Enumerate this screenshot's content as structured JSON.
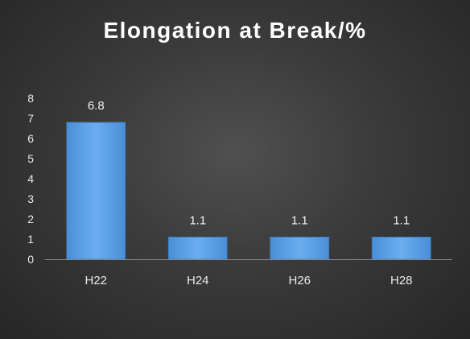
{
  "chart_data": {
    "type": "bar",
    "title": "Elongation at Break/%",
    "xlabel": "",
    "ylabel": "",
    "categories": [
      "H22",
      "H24",
      "H26",
      "H28"
    ],
    "values": [
      6.8,
      1.1,
      1.1,
      1.1
    ],
    "data_labels": [
      "6.8",
      "1.1",
      "1.1",
      "1.1"
    ],
    "yticks": [
      0,
      1,
      2,
      3,
      4,
      5,
      6,
      7,
      8
    ],
    "ylim": [
      0,
      8
    ],
    "grid": false,
    "legend": "none",
    "bar_color": "#5a9ee0",
    "background_color": "#3a3a3a",
    "text_color": "#ffffff"
  }
}
